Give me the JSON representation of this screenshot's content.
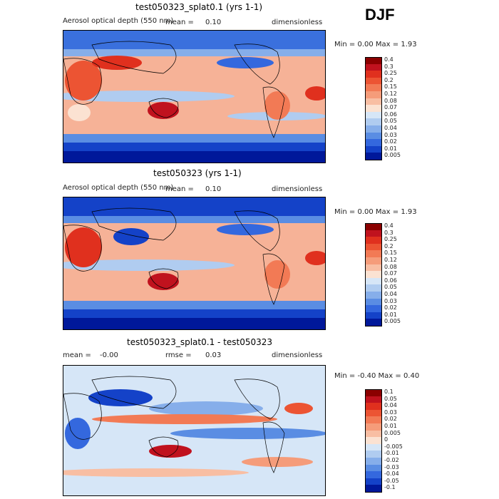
{
  "season": "DJF",
  "panels": [
    {
      "title": "test050323_splat0.1 (yrs 1-1)",
      "left_label": "Aerosol optical depth (550 nm)",
      "mean_label": "mean =",
      "mean_value": "0.10",
      "units": "dimensionless",
      "minmax": "Min =   0.00 Max =   1.93",
      "colorbar": [
        "0.4",
        "0.3",
        "0.25",
        "0.2",
        "0.15",
        "0.12",
        "0.08",
        "0.07",
        "0.06",
        "0.05",
        "0.04",
        "0.03",
        "0.02",
        "0.01",
        "0.005"
      ],
      "colors": [
        "#8b0000",
        "#c0121e",
        "#e0301e",
        "#ec5433",
        "#f27a55",
        "#f59c7a",
        "#f8bea3",
        "#fbe2d2",
        "#d6e6f7",
        "#b0ccf0",
        "#86aeea",
        "#5a8de3",
        "#3468de",
        "#1442c8",
        "#00189a"
      ]
    },
    {
      "title": "test050323 (yrs 1-1)",
      "left_label": "Aerosol optical depth (550 nm)",
      "mean_label": "mean =",
      "mean_value": "0.10",
      "units": "dimensionless",
      "minmax": "Min =   0.00 Max =   1.93",
      "colorbar": [
        "0.4",
        "0.3",
        "0.25",
        "0.2",
        "0.15",
        "0.12",
        "0.08",
        "0.07",
        "0.06",
        "0.05",
        "0.04",
        "0.03",
        "0.02",
        "0.01",
        "0.005"
      ],
      "colors": [
        "#8b0000",
        "#c0121e",
        "#e0301e",
        "#ec5433",
        "#f27a55",
        "#f59c7a",
        "#f8bea3",
        "#fbe2d2",
        "#d6e6f7",
        "#b0ccf0",
        "#86aeea",
        "#5a8de3",
        "#3468de",
        "#1442c8",
        "#00189a"
      ]
    },
    {
      "title": "test050323_splat0.1 - test050323",
      "mean_label": "mean =",
      "mean_value": "-0.00",
      "rmse_label": "rmse =",
      "rmse_value": "0.03",
      "units": "dimensionless",
      "minmax": "Min =  -0.40 Max =   0.40",
      "colorbar": [
        "0.1",
        "0.05",
        "0.04",
        "0.03",
        "0.02",
        "0.01",
        "0.005",
        "0",
        "-0.005",
        "-0.01",
        "-0.02",
        "-0.03",
        "-0.04",
        "-0.05",
        "-0.1"
      ],
      "colors": [
        "#8b0000",
        "#c0121e",
        "#e0301e",
        "#ec5433",
        "#f27a55",
        "#f59c7a",
        "#f8bea3",
        "#fbe2d2",
        "#d6e6f7",
        "#b0ccf0",
        "#86aeea",
        "#5a8de3",
        "#3468de",
        "#1442c8",
        "#00189a"
      ]
    }
  ],
  "chart_data": [
    {
      "type": "heatmap",
      "title": "test050323_splat0.1 (yrs 1-1)",
      "variable": "Aerosol optical depth (550 nm)",
      "season": "DJF",
      "mean": 0.1,
      "min": 0.0,
      "max": 1.93,
      "units": "dimensionless",
      "levels": [
        0.005,
        0.01,
        0.02,
        0.03,
        0.04,
        0.05,
        0.06,
        0.07,
        0.08,
        0.12,
        0.15,
        0.2,
        0.25,
        0.3,
        0.4
      ]
    },
    {
      "type": "heatmap",
      "title": "test050323 (yrs 1-1)",
      "variable": "Aerosol optical depth (550 nm)",
      "season": "DJF",
      "mean": 0.1,
      "min": 0.0,
      "max": 1.93,
      "units": "dimensionless",
      "levels": [
        0.005,
        0.01,
        0.02,
        0.03,
        0.04,
        0.05,
        0.06,
        0.07,
        0.08,
        0.12,
        0.15,
        0.2,
        0.25,
        0.3,
        0.4
      ]
    },
    {
      "type": "heatmap",
      "title": "test050323_splat0.1 - test050323",
      "season": "DJF",
      "mean": -0.0,
      "rmse": 0.03,
      "min": -0.4,
      "max": 0.4,
      "units": "dimensionless",
      "levels": [
        -0.1,
        -0.05,
        -0.04,
        -0.03,
        -0.02,
        -0.01,
        -0.005,
        0,
        0.005,
        0.01,
        0.02,
        0.03,
        0.04,
        0.05,
        0.1
      ]
    }
  ]
}
